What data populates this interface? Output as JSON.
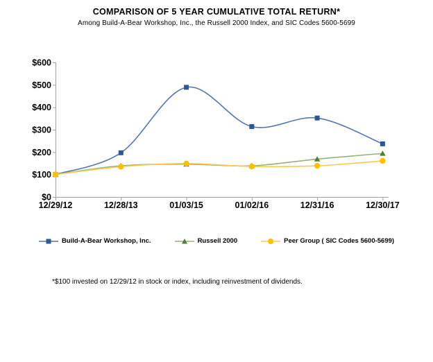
{
  "title": "COMPARISON OF 5 YEAR CUMULATIVE TOTAL RETURN*",
  "subtitle": "Among Build-A-Bear Workshop, Inc., the Russell 2000 Index, and SIC Codes 5600-5699",
  "footnote": "*$100 invested on 12/29/12 in stock or index, including reinvestment of dividends.",
  "chart_data": {
    "type": "line",
    "smooth": true,
    "grid": false,
    "legend_position": "bottom",
    "title": "COMPARISON OF 5 YEAR CUMULATIVE TOTAL RETURN*",
    "subtitle": "Among Build-A-Bear Workshop, Inc., the Russell 2000 Index, and SIC Codes 5600-5699",
    "xlabel": "",
    "ylabel": "",
    "ylim": [
      0,
      600
    ],
    "ytick_step": 100,
    "ytick_prefix": "$",
    "axis_color": "#a0a0a0",
    "categories": [
      "12/29/12",
      "12/28/13",
      "01/03/15",
      "01/02/16",
      "12/31/16",
      "12/30/17"
    ],
    "series": [
      {
        "name": "Build-A-Bear Workshop, Inc.",
        "marker": "square",
        "line_color": "#5577af",
        "marker_color": "#2e5894",
        "values": [
          100,
          197,
          489,
          314,
          352,
          237
        ]
      },
      {
        "name": "Russell 2000",
        "marker": "triangle",
        "line_color": "#94b478",
        "marker_color": "#507e32",
        "values": [
          100,
          139,
          146,
          139,
          169,
          194
        ]
      },
      {
        "name": "Peer Group ( SIC Codes 5600-5699)",
        "marker": "circle",
        "line_color": "#ffc846",
        "marker_color": "#ffc000",
        "values": [
          100,
          135,
          149,
          136,
          139,
          161
        ]
      }
    ]
  }
}
